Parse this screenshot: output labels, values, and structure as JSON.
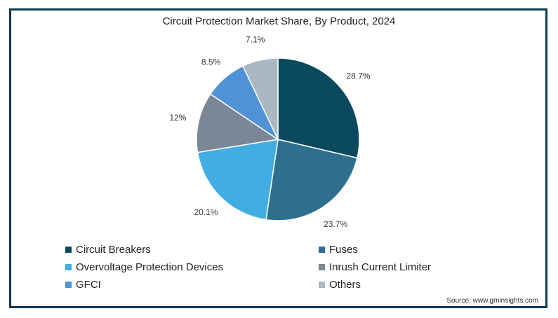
{
  "chart_data": {
    "type": "pie",
    "title": "Circuit Protection Market Share, By Product, 2024",
    "slices": [
      {
        "name": "Circuit Breakers",
        "value": 28.7,
        "label": "28.7%",
        "color": "#0b4a5e"
      },
      {
        "name": "Fuses",
        "value": 23.7,
        "label": "23.7%",
        "color": "#2e6f90"
      },
      {
        "name": "Overvoltage Protection Devices",
        "value": 20.1,
        "label": "20.1%",
        "color": "#41ade2"
      },
      {
        "name": "Inrush Current Limiter",
        "value": 12,
        "label": "12%",
        "color": "#7b8796"
      },
      {
        "name": "GFCI",
        "value": 8.5,
        "label": "8.5%",
        "color": "#4f92d6"
      },
      {
        "name": "Others",
        "value": 7.1,
        "label": "7.1%",
        "color": "#a9b8c3"
      }
    ],
    "legend_position": "bottom"
  },
  "source": "Source: www.gminsights.com"
}
